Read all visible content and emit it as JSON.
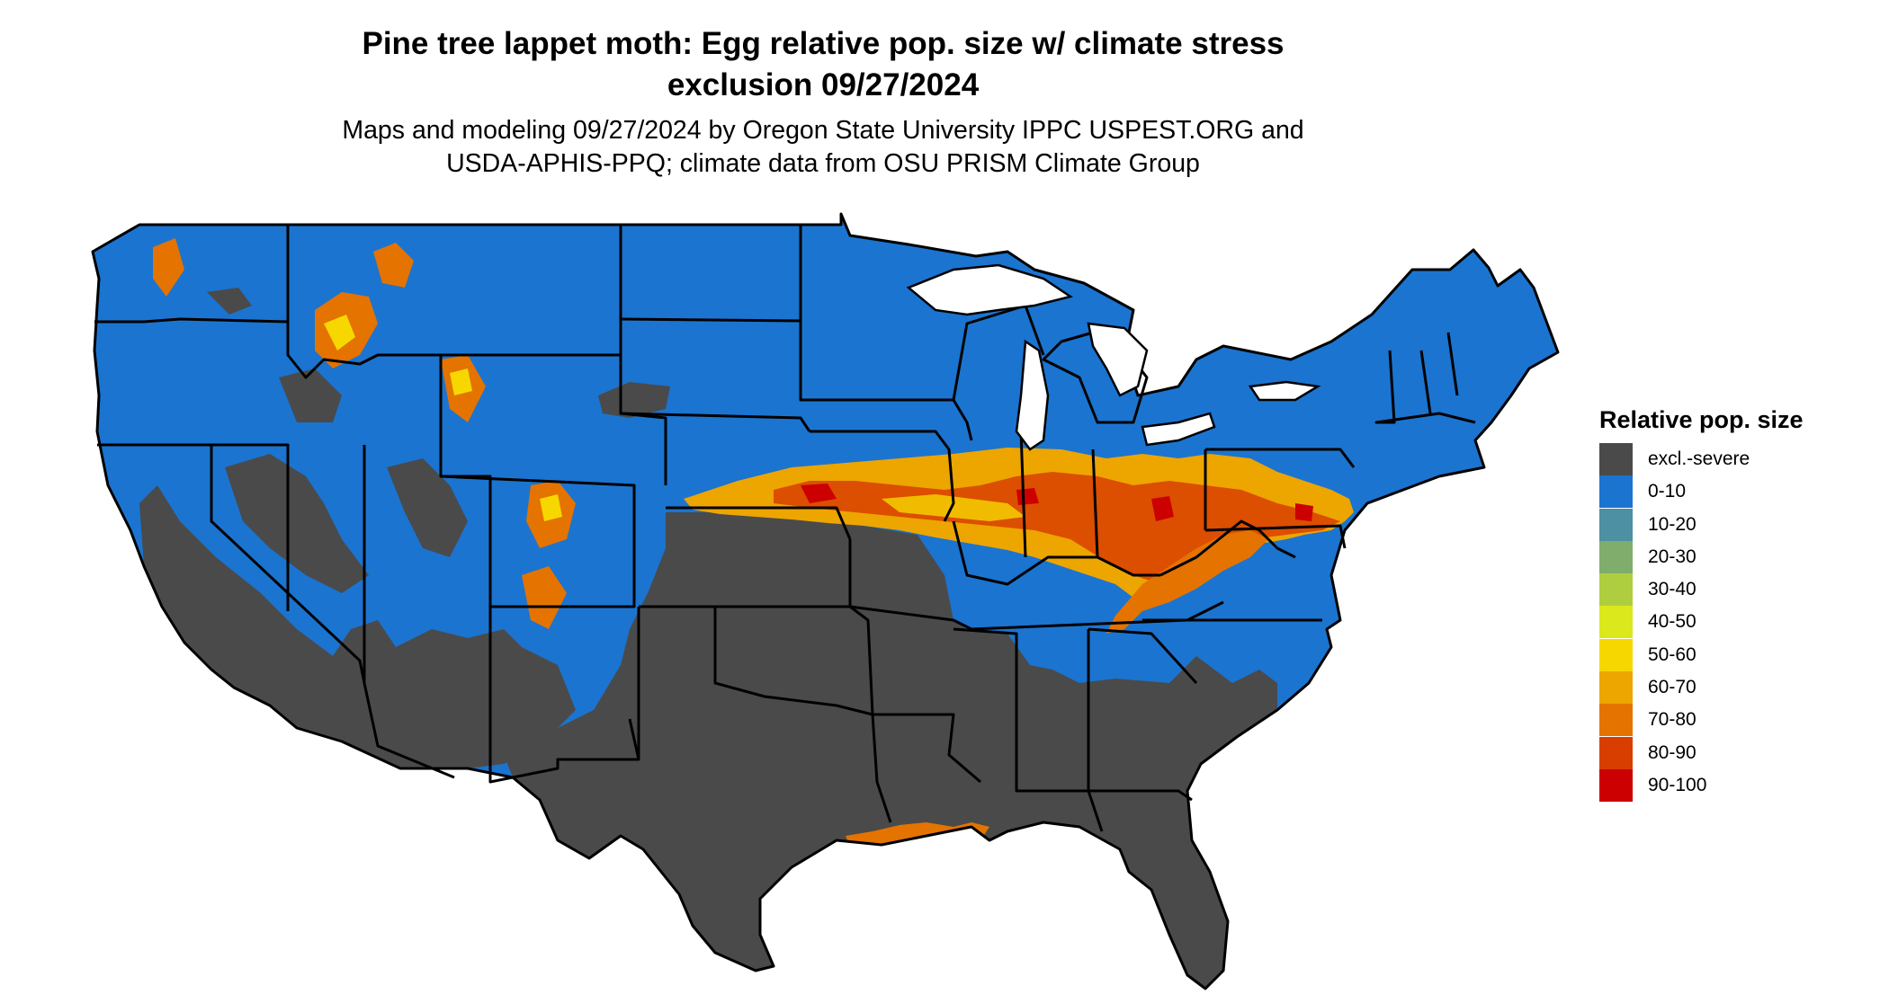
{
  "header": {
    "title_line1": "Pine tree lappet moth: Egg relative pop. size w/ climate stress",
    "title_line2": "exclusion 09/27/2024",
    "subtitle_line1": "Maps and modeling 09/27/2024 by Oregon State University IPPC USPEST.ORG and",
    "subtitle_line2": "USDA-APHIS-PPQ; climate data from OSU PRISM Climate Group"
  },
  "legend": {
    "title": "Relative pop. size",
    "items": [
      {
        "label": "excl.-severe",
        "color": "#4a4a4a"
      },
      {
        "label": "0-10",
        "color": "#1b74d0"
      },
      {
        "label": "10-20",
        "color": "#4d8fa3"
      },
      {
        "label": "20-30",
        "color": "#80ad6b"
      },
      {
        "label": "30-40",
        "color": "#aece3f"
      },
      {
        "label": "40-50",
        "color": "#dbe81c"
      },
      {
        "label": "50-60",
        "color": "#f6d800"
      },
      {
        "label": "60-70",
        "color": "#eda500"
      },
      {
        "label": "70-80",
        "color": "#e47300"
      },
      {
        "label": "80-90",
        "color": "#d83e00"
      },
      {
        "label": "90-100",
        "color": "#cc0000"
      }
    ]
  },
  "map": {
    "region": "Contiguous United States",
    "colors": {
      "excluded": "#4a4a4a",
      "low": "#1b74d0",
      "mid": "#eda500",
      "high": "#d83e00",
      "peak": "#cc0000",
      "border": "#000000"
    }
  }
}
